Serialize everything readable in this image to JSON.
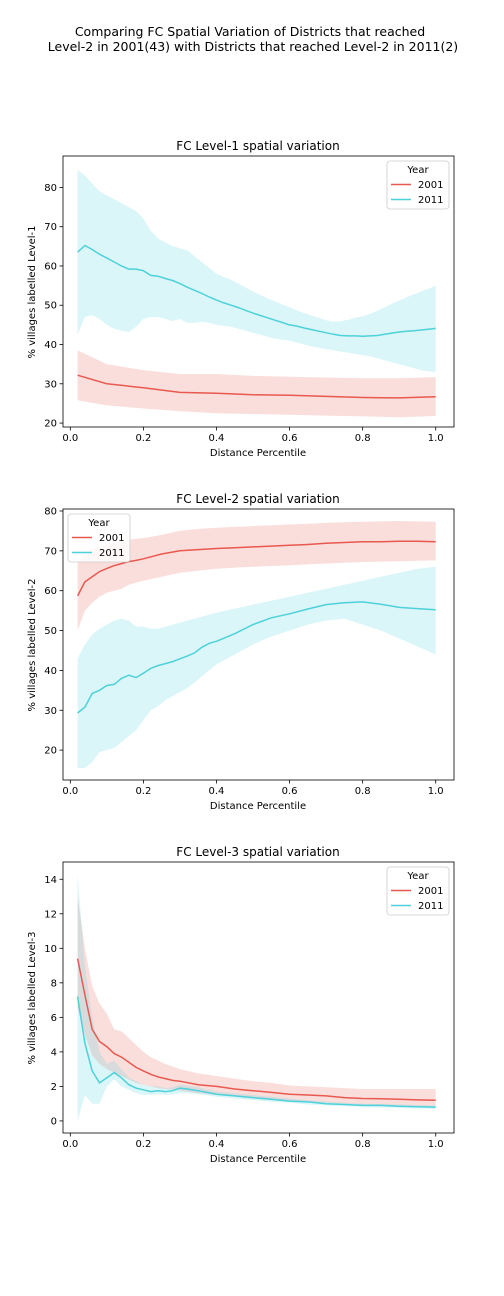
{
  "figure": {
    "suptitle_lines": [
      "Comparing FC Spatial Variation of Districts that reached",
      "Level-2 in 2001(43) with Districts that reached Level-2 in 2011(2)"
    ]
  },
  "colors": {
    "2001": "#e8594f",
    "2011": "#4dd1db"
  },
  "chart_data": [
    {
      "type": "line",
      "title": "FC Level-1 spatial variation",
      "xlabel": "Distance Percentile",
      "ylabel": "% villages labelled Level-1",
      "xlim": [
        -0.02,
        1.05
      ],
      "ylim": [
        19,
        88
      ],
      "xticks": [
        0.0,
        0.2,
        0.4,
        0.6,
        0.8,
        1.0
      ],
      "xtick_labels": [
        "0.0",
        "0.2",
        "0.4",
        "0.6",
        "0.8",
        "1.0"
      ],
      "yticks": [
        20,
        30,
        40,
        50,
        60,
        70,
        80
      ],
      "ytick_labels": [
        "20",
        "30",
        "40",
        "50",
        "60",
        "70",
        "80"
      ],
      "legend": {
        "title": "Year",
        "position": "upper right",
        "entries": [
          "2001",
          "2011"
        ]
      },
      "series": [
        {
          "name": "2001",
          "x": [
            0.02,
            0.1,
            0.2,
            0.3,
            0.4,
            0.5,
            0.6,
            0.7,
            0.8,
            0.9,
            1.0
          ],
          "y": [
            32.2,
            30.0,
            29.0,
            27.8,
            27.6,
            27.2,
            27.1,
            26.8,
            26.5,
            26.4,
            26.7
          ],
          "lower": [
            25.8,
            24.5,
            23.7,
            23.0,
            22.5,
            22.3,
            22.1,
            21.9,
            21.7,
            21.5,
            21.8
          ],
          "upper": [
            38.5,
            35.0,
            33.5,
            32.5,
            32.5,
            32.0,
            31.8,
            31.6,
            31.4,
            31.4,
            31.7
          ]
        },
        {
          "name": "2011",
          "x": [
            0.02,
            0.04,
            0.06,
            0.08,
            0.1,
            0.12,
            0.14,
            0.16,
            0.18,
            0.2,
            0.22,
            0.24,
            0.26,
            0.28,
            0.3,
            0.32,
            0.34,
            0.36,
            0.38,
            0.4,
            0.42,
            0.44,
            0.46,
            0.48,
            0.5,
            0.52,
            0.54,
            0.56,
            0.58,
            0.6,
            0.62,
            0.64,
            0.66,
            0.68,
            0.7,
            0.72,
            0.74,
            0.76,
            0.78,
            0.8,
            0.82,
            0.84,
            0.86,
            0.88,
            0.9,
            0.92,
            0.94,
            0.96,
            0.98,
            1.0
          ],
          "y": [
            63.5,
            65.2,
            64.2,
            63.0,
            62.0,
            61.0,
            60.0,
            59.2,
            59.2,
            58.8,
            57.6,
            57.4,
            56.8,
            56.3,
            55.5,
            54.6,
            53.8,
            53.0,
            52.1,
            51.3,
            50.6,
            50.0,
            49.4,
            48.7,
            48.0,
            47.4,
            46.8,
            46.2,
            45.6,
            45.0,
            44.7,
            44.2,
            43.8,
            43.4,
            43.0,
            42.6,
            42.3,
            42.2,
            42.2,
            42.1,
            42.2,
            42.3,
            42.6,
            42.9,
            43.2,
            43.4,
            43.5,
            43.7,
            43.9,
            44.1
          ],
          "lower": [
            42.5,
            47.0,
            47.5,
            46.5,
            45.0,
            44.0,
            43.5,
            43.2,
            44.5,
            46.5,
            47.0,
            47.0,
            46.5,
            46.0,
            46.5,
            45.5,
            45.5,
            45.8,
            45.5,
            45.0,
            44.8,
            44.5,
            44.0,
            43.5,
            43.0,
            42.5,
            42.0,
            41.5,
            41.2,
            41.0,
            40.5,
            40.0,
            39.5,
            39.2,
            38.8,
            38.5,
            38.2,
            37.9,
            37.6,
            37.3,
            37.0,
            36.5,
            36.0,
            35.5,
            35.0,
            34.5,
            34.0,
            33.5,
            33.2,
            33.0
          ],
          "upper": [
            84.5,
            83.0,
            81.0,
            79.0,
            78.0,
            77.0,
            76.0,
            75.0,
            74.0,
            72.0,
            69.0,
            67.0,
            66.0,
            65.0,
            64.5,
            64.0,
            62.5,
            61.0,
            59.5,
            58.0,
            57.2,
            56.5,
            55.5,
            54.5,
            53.5,
            52.6,
            51.8,
            51.0,
            50.2,
            49.5,
            48.7,
            48.0,
            47.4,
            46.8,
            46.2,
            45.8,
            45.9,
            46.3,
            46.8,
            47.2,
            47.8,
            48.6,
            49.5,
            50.4,
            51.2,
            52.0,
            52.8,
            53.5,
            54.2,
            55.0
          ]
        }
      ]
    },
    {
      "type": "line",
      "title": "FC Level-2 spatial variation",
      "xlabel": "Distance Percentile",
      "ylabel": "% villages labelled Level-2",
      "xlim": [
        -0.02,
        1.05
      ],
      "ylim": [
        12.5,
        80.5
      ],
      "xticks": [
        0.0,
        0.2,
        0.4,
        0.6,
        0.8,
        1.0
      ],
      "xtick_labels": [
        "0.0",
        "0.2",
        "0.4",
        "0.6",
        "0.8",
        "1.0"
      ],
      "yticks": [
        20,
        30,
        40,
        50,
        60,
        70,
        80
      ],
      "ytick_labels": [
        "20",
        "30",
        "40",
        "50",
        "60",
        "70",
        "80"
      ],
      "legend": {
        "title": "Year",
        "position": "upper left",
        "entries": [
          "2001",
          "2011"
        ]
      },
      "series": [
        {
          "name": "2001",
          "x": [
            0.02,
            0.04,
            0.06,
            0.08,
            0.1,
            0.12,
            0.14,
            0.16,
            0.18,
            0.2,
            0.25,
            0.3,
            0.35,
            0.4,
            0.45,
            0.5,
            0.55,
            0.6,
            0.65,
            0.7,
            0.75,
            0.8,
            0.85,
            0.9,
            0.95,
            1.0
          ],
          "y": [
            58.7,
            62.2,
            63.5,
            64.8,
            65.6,
            66.3,
            66.8,
            67.3,
            67.6,
            68.0,
            69.2,
            70.0,
            70.3,
            70.6,
            70.8,
            71.0,
            71.2,
            71.4,
            71.6,
            71.9,
            72.1,
            72.3,
            72.3,
            72.4,
            72.4,
            72.3
          ],
          "lower": [
            50.0,
            55.0,
            57.0,
            58.5,
            59.5,
            60.0,
            60.5,
            61.5,
            62.0,
            62.5,
            63.5,
            64.5,
            65.0,
            65.5,
            65.8,
            66.0,
            66.2,
            66.4,
            66.6,
            66.8,
            67.0,
            67.2,
            67.3,
            67.4,
            67.5,
            67.6
          ],
          "upper": [
            67.0,
            69.5,
            70.5,
            71.0,
            71.5,
            72.0,
            72.5,
            72.8,
            73.0,
            73.2,
            74.0,
            75.0,
            75.5,
            75.8,
            76.0,
            76.2,
            76.4,
            76.6,
            76.8,
            77.0,
            77.2,
            77.3,
            77.4,
            77.5,
            77.4,
            77.3
          ]
        },
        {
          "name": "2011",
          "x": [
            0.02,
            0.04,
            0.06,
            0.08,
            0.1,
            0.12,
            0.14,
            0.16,
            0.18,
            0.2,
            0.22,
            0.24,
            0.26,
            0.28,
            0.3,
            0.32,
            0.34,
            0.36,
            0.38,
            0.4,
            0.45,
            0.5,
            0.55,
            0.6,
            0.65,
            0.7,
            0.75,
            0.8,
            0.85,
            0.9,
            0.95,
            1.0
          ],
          "y": [
            29.3,
            30.8,
            34.2,
            35.0,
            36.2,
            36.5,
            38.0,
            38.8,
            38.2,
            39.3,
            40.5,
            41.2,
            41.7,
            42.2,
            42.9,
            43.6,
            44.4,
            45.8,
            46.8,
            47.3,
            49.2,
            51.5,
            53.2,
            54.2,
            55.4,
            56.5,
            57.0,
            57.2,
            56.6,
            55.8,
            55.5,
            55.2
          ],
          "lower": [
            15.5,
            15.5,
            17.0,
            19.5,
            20.0,
            20.5,
            22.0,
            23.5,
            25.0,
            27.5,
            30.0,
            31.0,
            32.5,
            33.5,
            34.5,
            35.5,
            37.0,
            38.5,
            40.0,
            41.5,
            44.0,
            46.5,
            48.5,
            50.0,
            51.5,
            52.5,
            53.0,
            51.5,
            50.0,
            48.0,
            46.0,
            44.0
          ],
          "upper": [
            43.0,
            46.5,
            49.0,
            50.5,
            51.5,
            52.5,
            53.0,
            52.5,
            51.0,
            51.0,
            50.5,
            50.5,
            51.0,
            51.5,
            52.0,
            52.5,
            53.0,
            53.5,
            54.0,
            54.5,
            55.5,
            56.5,
            57.5,
            58.5,
            59.5,
            60.5,
            61.5,
            62.5,
            63.5,
            64.5,
            65.5,
            66.0
          ]
        }
      ]
    },
    {
      "type": "line",
      "title": "FC Level-3 spatial variation",
      "xlabel": "Distance Percentile",
      "ylabel": "% villages labelled Level-3",
      "xlim": [
        -0.02,
        1.05
      ],
      "ylim": [
        -0.7,
        15.0
      ],
      "xticks": [
        0.0,
        0.2,
        0.4,
        0.6,
        0.8,
        1.0
      ],
      "xtick_labels": [
        "0.0",
        "0.2",
        "0.4",
        "0.6",
        "0.8",
        "1.0"
      ],
      "yticks": [
        0,
        2,
        4,
        6,
        8,
        10,
        12,
        14
      ],
      "ytick_labels": [
        "0",
        "2",
        "4",
        "6",
        "8",
        "10",
        "12",
        "14"
      ],
      "legend": {
        "title": "Year",
        "position": "upper right",
        "entries": [
          "2001",
          "2011"
        ]
      },
      "series": [
        {
          "name": "2001",
          "x": [
            0.02,
            0.04,
            0.06,
            0.08,
            0.1,
            0.12,
            0.14,
            0.16,
            0.18,
            0.2,
            0.22,
            0.24,
            0.26,
            0.28,
            0.3,
            0.35,
            0.4,
            0.45,
            0.5,
            0.55,
            0.6,
            0.65,
            0.7,
            0.75,
            0.8,
            0.85,
            0.9,
            0.95,
            1.0
          ],
          "y": [
            9.4,
            7.3,
            5.3,
            4.6,
            4.3,
            3.9,
            3.7,
            3.4,
            3.1,
            2.9,
            2.7,
            2.55,
            2.45,
            2.35,
            2.3,
            2.1,
            2.0,
            1.85,
            1.75,
            1.65,
            1.55,
            1.5,
            1.45,
            1.35,
            1.3,
            1.28,
            1.25,
            1.22,
            1.2
          ],
          "lower": [
            6.5,
            5.0,
            3.8,
            3.3,
            3.0,
            2.8,
            2.6,
            2.4,
            2.2,
            2.1,
            2.0,
            1.9,
            1.85,
            1.8,
            1.75,
            1.6,
            1.5,
            1.4,
            1.3,
            1.2,
            1.15,
            1.1,
            1.05,
            1.0,
            0.95,
            0.9,
            0.88,
            0.86,
            0.85
          ],
          "upper": [
            13.0,
            10.0,
            7.8,
            6.8,
            6.2,
            5.3,
            5.2,
            4.8,
            4.4,
            4.0,
            3.7,
            3.5,
            3.3,
            3.15,
            3.0,
            2.75,
            2.6,
            2.45,
            2.3,
            2.2,
            2.05,
            2.0,
            1.95,
            1.9,
            1.85,
            1.85,
            1.85,
            1.85,
            1.85
          ]
        },
        {
          "name": "2011",
          "x": [
            0.02,
            0.04,
            0.06,
            0.08,
            0.1,
            0.12,
            0.14,
            0.16,
            0.18,
            0.2,
            0.22,
            0.24,
            0.26,
            0.28,
            0.3,
            0.32,
            0.35,
            0.4,
            0.45,
            0.5,
            0.55,
            0.6,
            0.65,
            0.7,
            0.75,
            0.8,
            0.85,
            0.9,
            0.95,
            1.0
          ],
          "y": [
            7.2,
            4.5,
            2.9,
            2.2,
            2.5,
            2.8,
            2.5,
            2.1,
            1.9,
            1.8,
            1.7,
            1.75,
            1.7,
            1.75,
            1.9,
            1.85,
            1.75,
            1.55,
            1.45,
            1.35,
            1.25,
            1.15,
            1.1,
            1.0,
            0.95,
            0.9,
            0.9,
            0.85,
            0.82,
            0.8
          ],
          "lower": [
            0.0,
            1.5,
            1.0,
            1.0,
            2.0,
            2.4,
            2.0,
            1.8,
            1.6,
            1.5,
            1.5,
            1.55,
            1.5,
            1.55,
            1.6,
            1.6,
            1.55,
            1.4,
            1.3,
            1.2,
            1.1,
            1.05,
            0.95,
            0.9,
            0.85,
            0.8,
            0.78,
            0.75,
            0.72,
            0.7
          ],
          "upper": [
            14.3,
            9.0,
            6.0,
            4.0,
            3.3,
            3.5,
            3.0,
            2.5,
            2.3,
            2.1,
            2.0,
            2.0,
            1.9,
            1.95,
            2.1,
            2.05,
            1.95,
            1.7,
            1.6,
            1.5,
            1.4,
            1.3,
            1.2,
            1.12,
            1.05,
            1.0,
            0.98,
            0.95,
            0.92,
            0.9
          ]
        }
      ]
    }
  ]
}
